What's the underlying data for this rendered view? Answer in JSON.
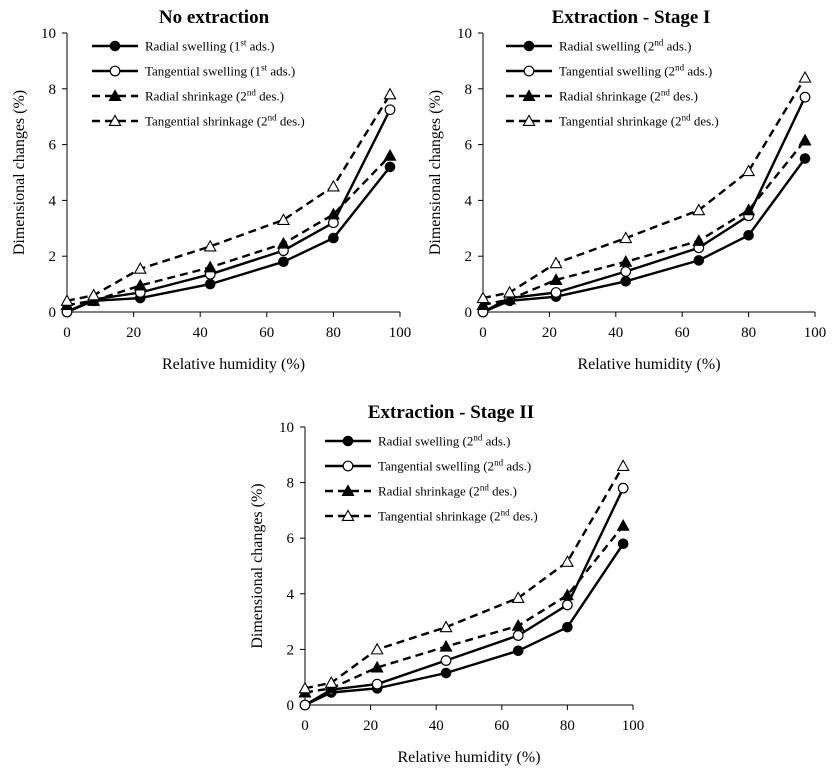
{
  "chart_data": [
    {
      "type": "line",
      "title": "No extraction",
      "xlabel": "Relative humidity (%)",
      "ylabel": "Dimensional changes (%)",
      "xlim": [
        0,
        100
      ],
      "ylim": [
        0,
        10
      ],
      "xticks": [
        0,
        20,
        40,
        60,
        80,
        100
      ],
      "yticks": [
        0,
        2,
        4,
        6,
        8,
        10
      ],
      "legend_position": "top-left",
      "series": [
        {
          "name": "Radial swelling",
          "sup": "st",
          "suffix": " ads.)",
          "line": "solid",
          "marker": "filled-circle",
          "x": [
            0,
            8,
            22,
            43,
            65,
            80,
            97
          ],
          "y": [
            0.0,
            0.4,
            0.5,
            1.0,
            1.8,
            2.65,
            5.2
          ]
        },
        {
          "name": "Tangential swelling",
          "sup": "st",
          "suffix": " ads.)",
          "line": "solid",
          "marker": "open-circle",
          "x": [
            0,
            8,
            22,
            43,
            65,
            80,
            97
          ],
          "y": [
            0.0,
            0.45,
            0.7,
            1.35,
            2.2,
            3.2,
            7.25
          ]
        },
        {
          "name": "Radial shrinkage",
          "sup": "nd",
          "suffix": " des.)",
          "line": "dashed",
          "marker": "filled-triangle",
          "x": [
            0,
            8,
            22,
            43,
            65,
            80,
            97
          ],
          "y": [
            0.25,
            0.4,
            0.95,
            1.6,
            2.45,
            3.5,
            5.6
          ]
        },
        {
          "name": "Tangential shrinkage",
          "sup": "nd",
          "suffix": " des.)",
          "line": "dashed",
          "marker": "open-triangle",
          "x": [
            0,
            8,
            22,
            43,
            65,
            80,
            97
          ],
          "y": [
            0.4,
            0.6,
            1.55,
            2.35,
            3.3,
            4.5,
            7.8
          ]
        }
      ],
      "legend_first_num": "1"
    },
    {
      "type": "line",
      "title": "Extraction - Stage I",
      "xlabel": "Relative humidity (%)",
      "ylabel": "Dimensional changes (%)",
      "xlim": [
        0,
        100
      ],
      "ylim": [
        0,
        10
      ],
      "xticks": [
        0,
        20,
        40,
        60,
        80,
        100
      ],
      "yticks": [
        0,
        2,
        4,
        6,
        8,
        10
      ],
      "legend_position": "top-left",
      "series": [
        {
          "name": "Radial swelling",
          "sup": "nd",
          "suffix": " ads.)",
          "line": "solid",
          "marker": "filled-circle",
          "x": [
            0,
            8,
            22,
            43,
            65,
            80,
            97
          ],
          "y": [
            0.0,
            0.4,
            0.55,
            1.1,
            1.85,
            2.75,
            5.5
          ]
        },
        {
          "name": "Tangential swelling",
          "sup": "nd",
          "suffix": " ads.)",
          "line": "solid",
          "marker": "open-circle",
          "x": [
            0,
            8,
            22,
            43,
            65,
            80,
            97
          ],
          "y": [
            0.0,
            0.5,
            0.7,
            1.45,
            2.3,
            3.45,
            7.7
          ]
        },
        {
          "name": "Radial shrinkage",
          "sup": "nd",
          "suffix": " des.)",
          "line": "dashed",
          "marker": "filled-triangle",
          "x": [
            0,
            8,
            22,
            43,
            65,
            80,
            97
          ],
          "y": [
            0.25,
            0.45,
            1.15,
            1.8,
            2.55,
            3.65,
            6.15
          ]
        },
        {
          "name": "Tangential shrinkage",
          "sup": "nd",
          "suffix": " des.)",
          "line": "dashed",
          "marker": "open-triangle",
          "x": [
            0,
            8,
            22,
            43,
            65,
            80,
            97
          ],
          "y": [
            0.5,
            0.7,
            1.75,
            2.65,
            3.65,
            5.05,
            8.4
          ]
        }
      ],
      "legend_first_num": "2"
    },
    {
      "type": "line",
      "title": "Extraction - Stage II",
      "xlabel": "Relative humidity (%)",
      "ylabel": "Dimensional changes (%)",
      "xlim": [
        0,
        100
      ],
      "ylim": [
        0,
        10
      ],
      "xticks": [
        0,
        20,
        40,
        60,
        80,
        100
      ],
      "yticks": [
        0,
        2,
        4,
        6,
        8,
        10
      ],
      "legend_position": "top-left",
      "series": [
        {
          "name": "Radial swelling",
          "sup": "nd",
          "suffix": " ads.)",
          "line": "solid",
          "marker": "filled-circle",
          "x": [
            0,
            8,
            22,
            43,
            65,
            80,
            97
          ],
          "y": [
            0.0,
            0.45,
            0.6,
            1.15,
            1.95,
            2.8,
            5.8
          ]
        },
        {
          "name": "Tangential swelling",
          "sup": "nd",
          "suffix": " ads.)",
          "line": "solid",
          "marker": "open-circle",
          "x": [
            0,
            8,
            22,
            43,
            65,
            80,
            97
          ],
          "y": [
            0.0,
            0.55,
            0.75,
            1.6,
            2.5,
            3.6,
            7.8
          ]
        },
        {
          "name": "Radial shrinkage",
          "sup": "nd",
          "suffix": " des.)",
          "line": "dashed",
          "marker": "filled-triangle",
          "x": [
            0,
            8,
            22,
            43,
            65,
            80,
            97
          ],
          "y": [
            0.45,
            0.6,
            1.35,
            2.1,
            2.85,
            3.95,
            6.45
          ]
        },
        {
          "name": "Tangential shrinkage",
          "sup": "nd",
          "suffix": " des.)",
          "line": "dashed",
          "marker": "open-triangle",
          "x": [
            0,
            8,
            22,
            43,
            65,
            80,
            97
          ],
          "y": [
            0.6,
            0.8,
            2.0,
            2.8,
            3.85,
            5.15,
            8.6
          ]
        }
      ],
      "legend_first_num": "2"
    }
  ]
}
